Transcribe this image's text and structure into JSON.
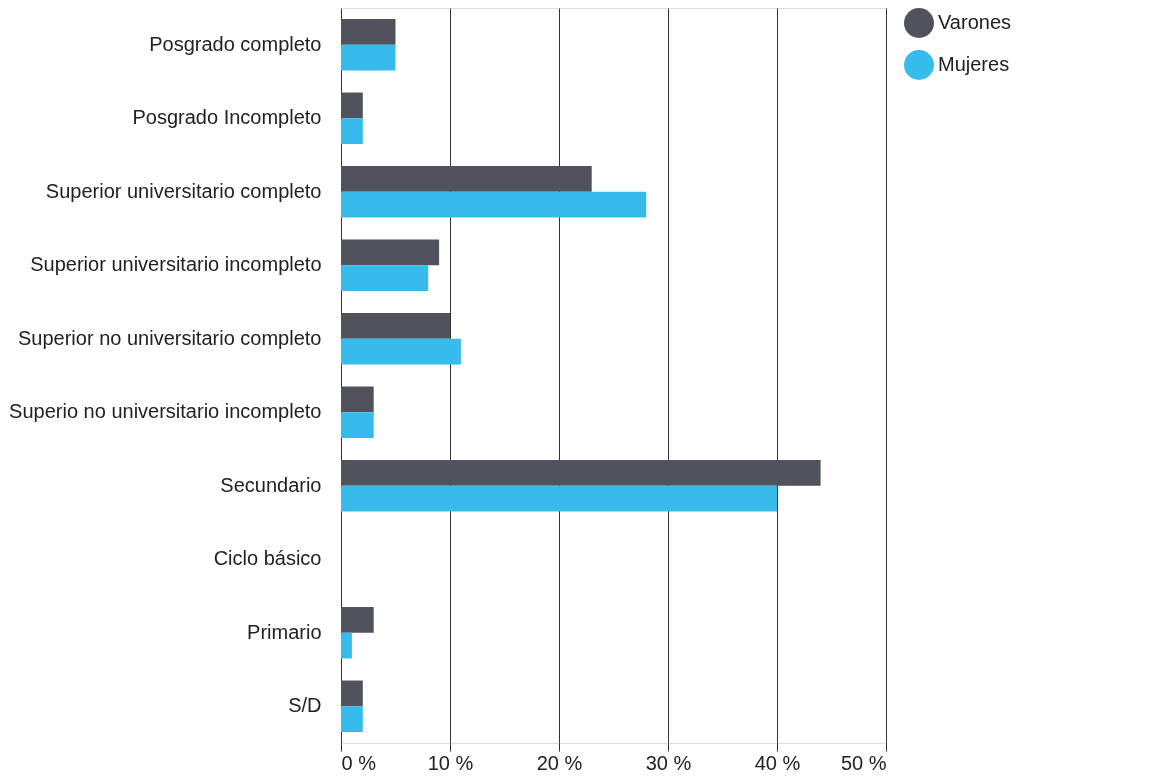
{
  "chart_data": {
    "type": "bar",
    "orientation": "horizontal",
    "categories": [
      "Posgrado completo",
      "Posgrado Incompleto",
      "Superior universitario completo",
      "Superior universitario incompleto",
      "Superior no universitario completo",
      "Superio no universitario incompleto",
      "Secundario",
      "Ciclo básico",
      "Primario",
      "S/D"
    ],
    "series": [
      {
        "name": "Varones",
        "color": "#50535c",
        "values": [
          5,
          2,
          23,
          9,
          10,
          3,
          44,
          0,
          3,
          2
        ]
      },
      {
        "name": "Mujeres",
        "color": "#37bbec",
        "values": [
          5,
          2,
          28,
          8,
          11,
          3,
          40,
          0,
          1,
          2
        ]
      }
    ],
    "xlim": [
      0,
      50
    ],
    "xticks": [
      {
        "value": 0,
        "label": "0 %"
      },
      {
        "value": 10,
        "label": "10 %"
      },
      {
        "value": 20,
        "label": "20 %"
      },
      {
        "value": 30,
        "label": "30 %"
      },
      {
        "value": 40,
        "label": "40 %"
      },
      {
        "value": 50,
        "label": "50 %"
      }
    ],
    "grid": "x",
    "legend": "right"
  }
}
